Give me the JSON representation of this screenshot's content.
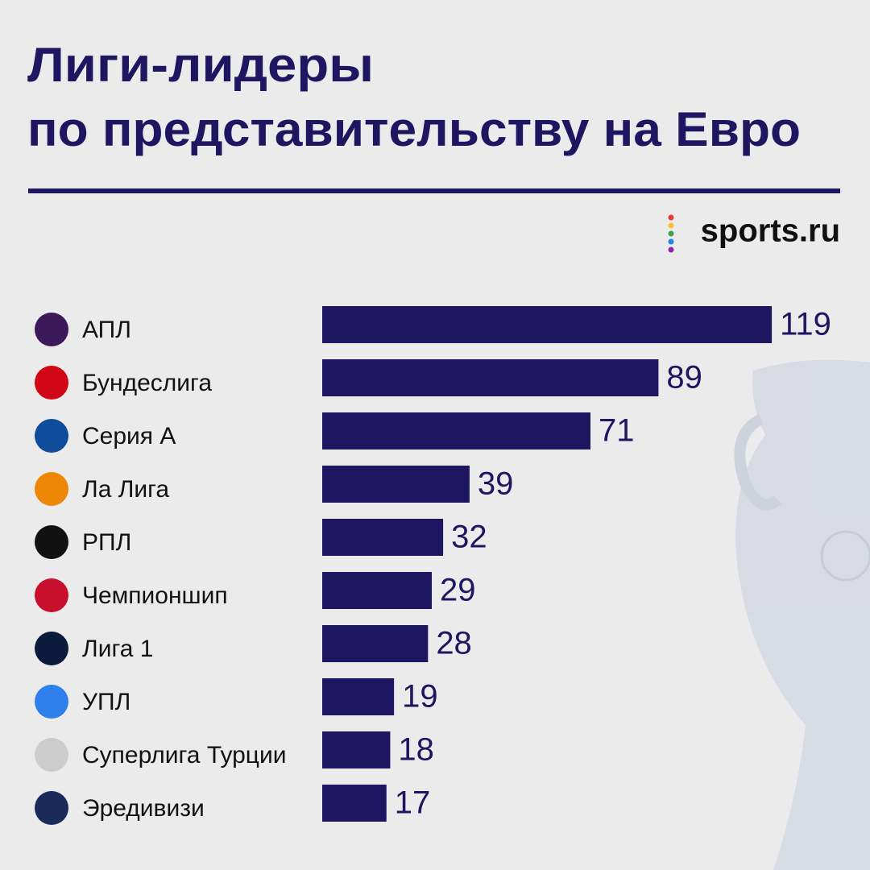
{
  "chart_data": {
    "type": "bar",
    "orientation": "horizontal",
    "title": [
      "Лиги-лидеры",
      "по представительству на Евро"
    ],
    "brand": "sports.ru",
    "categories": [
      "АПЛ",
      "Бундеслига",
      "Серия А",
      "Ла Лига",
      "РПЛ",
      "Чемпионшип",
      "Лига 1",
      "УПЛ",
      "Суперлига Турции",
      "Эредивизи"
    ],
    "values": [
      119,
      89,
      71,
      39,
      32,
      29,
      28,
      19,
      18,
      17
    ],
    "color": "#1e1660"
  }
}
